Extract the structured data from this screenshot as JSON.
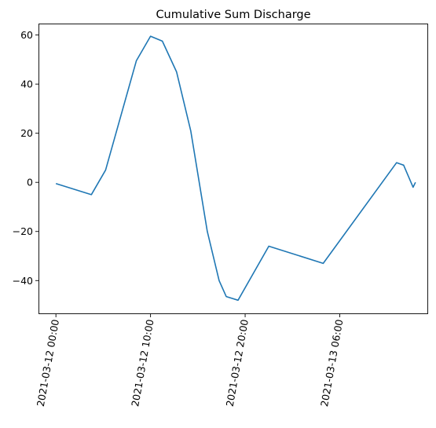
{
  "chart_data": {
    "type": "line",
    "title": "Cumulative Sum Discharge",
    "xlabel": "",
    "ylabel": "",
    "x": [
      "2021-03-12 00:00",
      "2021-03-12 03:45",
      "2021-03-12 05:15",
      "2021-03-12 08:30",
      "2021-03-12 10:00",
      "2021-03-12 11:15",
      "2021-03-12 12:45",
      "2021-03-12 14:15",
      "2021-03-12 16:00",
      "2021-03-12 17:15",
      "2021-03-12 18:00",
      "2021-03-12 19:15",
      "2021-03-12 22:30",
      "2021-03-13 04:15",
      "2021-03-13 12:00",
      "2021-03-13 12:45",
      "2021-03-13 13:45",
      "2021-03-13 14:00"
    ],
    "series": [
      {
        "color": "#1f77b4",
        "values": [
          -0.5,
          -5,
          5,
          49.5,
          59.5,
          57.5,
          45,
          21,
          -20,
          -40,
          -46.5,
          -48,
          -26,
          -33,
          8,
          7,
          -2,
          0
        ]
      }
    ],
    "xlim": [
      "2021-03-11 22:12",
      "2021-03-13 15:18"
    ],
    "ylim": [
      -53.5,
      64.5
    ],
    "x_ticks": [
      {
        "value": "2021-03-12 00:00",
        "label": "2021-03-12 00:00"
      },
      {
        "value": "2021-03-12 10:00",
        "label": "2021-03-12 10:00"
      },
      {
        "value": "2021-03-12 20:00",
        "label": "2021-03-12 20:00"
      },
      {
        "value": "2021-03-13 06:00",
        "label": "2021-03-13 06:00"
      }
    ],
    "y_ticks": [
      {
        "value": 60,
        "label": "60"
      },
      {
        "value": 40,
        "label": "40"
      },
      {
        "value": 20,
        "label": "20"
      },
      {
        "value": 0,
        "label": "0"
      },
      {
        "value": -20,
        "label": "−20"
      },
      {
        "value": -40,
        "label": "−40"
      }
    ],
    "x_tick_rotation": 80,
    "grid": false,
    "legend": false
  }
}
